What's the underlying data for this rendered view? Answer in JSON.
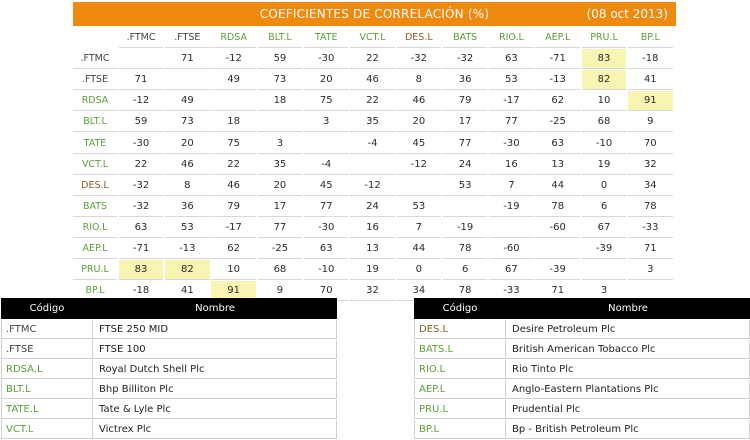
{
  "title": "COEFICIENTES DE CORRELACIÓN (%)",
  "date": "(08 oct 2013)",
  "colors": {
    "accent": "#f08a0e",
    "highlight": "#f8f4b2",
    "green_ticker": "#5a9e3a",
    "gray_ticker": "#444444",
    "brown_ticker": "#8a5a2a"
  },
  "tickers": [
    {
      "code": ".FTMC",
      "color": "gray"
    },
    {
      "code": ".FTSE",
      "color": "gray"
    },
    {
      "code": "RDSA",
      "color": "green"
    },
    {
      "code": "BLT.L",
      "color": "green"
    },
    {
      "code": "TATE",
      "color": "green"
    },
    {
      "code": "VCT.L",
      "color": "green"
    },
    {
      "code": "DES.L",
      "color": "brown"
    },
    {
      "code": "BATS",
      "color": "green"
    },
    {
      "code": "RIO.L",
      "color": "green"
    },
    {
      "code": "AEP.L",
      "color": "green"
    },
    {
      "code": "PRU.L",
      "color": "green"
    },
    {
      "code": "BP.L",
      "color": "green"
    }
  ],
  "matrix": [
    [
      "",
      "71",
      "-12",
      "59",
      "-30",
      "22",
      "-32",
      "-32",
      "63",
      "-71",
      "83",
      "-18"
    ],
    [
      "71",
      "",
      "49",
      "73",
      "20",
      "46",
      "8",
      "36",
      "53",
      "-13",
      "82",
      "41"
    ],
    [
      "-12",
      "49",
      "",
      "18",
      "75",
      "22",
      "46",
      "79",
      "-17",
      "62",
      "10",
      "91"
    ],
    [
      "59",
      "73",
      "18",
      "",
      "3",
      "35",
      "20",
      "17",
      "77",
      "-25",
      "68",
      "9"
    ],
    [
      "-30",
      "20",
      "75",
      "3",
      "",
      "-4",
      "45",
      "77",
      "-30",
      "63",
      "-10",
      "70"
    ],
    [
      "22",
      "46",
      "22",
      "35",
      "-4",
      "",
      "-12",
      "24",
      "16",
      "13",
      "19",
      "32"
    ],
    [
      "-32",
      "8",
      "46",
      "20",
      "45",
      "-12",
      "",
      "53",
      "7",
      "44",
      "0",
      "34"
    ],
    [
      "-32",
      "36",
      "79",
      "17",
      "77",
      "24",
      "53",
      "",
      "-19",
      "78",
      "6",
      "78"
    ],
    [
      "63",
      "53",
      "-17",
      "77",
      "-30",
      "16",
      "7",
      "-19",
      "",
      "-60",
      "67",
      "-33"
    ],
    [
      "-71",
      "-13",
      "62",
      "-25",
      "63",
      "13",
      "44",
      "78",
      "-60",
      "",
      "-39",
      "71"
    ],
    [
      "83",
      "82",
      "10",
      "68",
      "-10",
      "19",
      "0",
      "6",
      "67",
      "-39",
      "",
      "3"
    ],
    [
      "-18",
      "41",
      "91",
      "9",
      "70",
      "32",
      "34",
      "78",
      "-33",
      "71",
      "3",
      ""
    ]
  ],
  "highlights": [
    [
      0,
      10
    ],
    [
      1,
      10
    ],
    [
      2,
      11
    ],
    [
      10,
      0
    ],
    [
      10,
      1
    ],
    [
      11,
      2
    ]
  ],
  "legend": {
    "header_code": "Código",
    "header_name": "Nombre",
    "left": [
      {
        "code": ".FTMC",
        "name": "FTSE 250 MID",
        "color": "gray"
      },
      {
        "code": ".FTSE",
        "name": "FTSE 100",
        "color": "gray"
      },
      {
        "code": "RDSA.L",
        "name": "Royal Dutch Shell Plc",
        "color": "green"
      },
      {
        "code": "BLT.L",
        "name": "Bhp Billiton Plc",
        "color": "green"
      },
      {
        "code": "TATE.L",
        "name": "Tate & Lyle Plc",
        "color": "green"
      },
      {
        "code": "VCT.L",
        "name": "Victrex Plc",
        "color": "green"
      }
    ],
    "right": [
      {
        "code": "DES.L",
        "name": "Desire Petroleum Plc",
        "color": "brown"
      },
      {
        "code": "BATS.L",
        "name": "British American Tobacco Plc",
        "color": "green"
      },
      {
        "code": "RIO.L",
        "name": "Rio Tinto Plc",
        "color": "green"
      },
      {
        "code": "AEP.L",
        "name": "Anglo-Eastern Plantations Plc",
        "color": "green"
      },
      {
        "code": "PRU.L",
        "name": "Prudential Plc",
        "color": "green"
      },
      {
        "code": "BP.L",
        "name": "Bp - British Petroleum Plc",
        "color": "green"
      }
    ]
  }
}
